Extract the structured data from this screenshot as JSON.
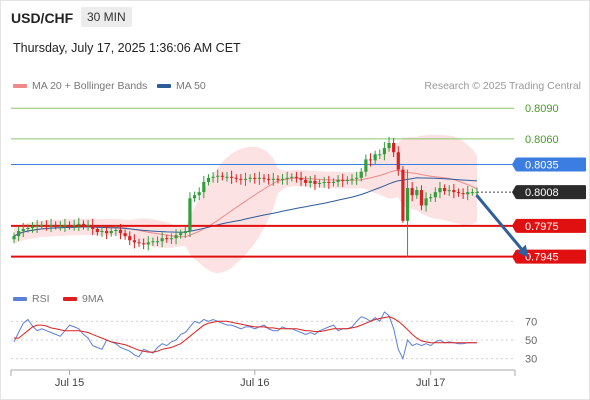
{
  "header": {
    "symbol": "USD/CHF",
    "timeframe": "30 MIN",
    "datetime": "Thursday, July 17, 2025 1:36:06 AM CET",
    "copyright": "Research © 2025 Trading Central"
  },
  "legend": {
    "ma20": {
      "label": "MA 20 + Bollinger Bands",
      "color": "#f08a8a"
    },
    "ma50": {
      "label": "MA 50",
      "color": "#2e5b9a"
    },
    "rsi": {
      "label": "RSI",
      "color": "#5b80d8"
    },
    "ma9": {
      "label": "9MA",
      "color": "#e02020"
    }
  },
  "chart_data": {
    "type": "candlestick",
    "ylim": [
      0.793,
      0.8098
    ],
    "levels": [
      {
        "value": 0.809,
        "label": "0.8090",
        "kind": "resistance",
        "color": "#8cc56a"
      },
      {
        "value": 0.806,
        "label": "0.8060",
        "kind": "resistance",
        "color": "#8cc56a"
      },
      {
        "value": 0.8035,
        "label": "0.8035",
        "kind": "pivot",
        "color": "#3b7de0"
      },
      {
        "value": 0.8008,
        "label": "0.8008",
        "kind": "last",
        "color": "#2b2b2b"
      },
      {
        "value": 0.7975,
        "label": "0.7975",
        "kind": "support",
        "color": "#e01010"
      },
      {
        "value": 0.7945,
        "label": "0.7945",
        "kind": "support",
        "color": "#e01010"
      }
    ],
    "x_ticks": [
      {
        "index": 12,
        "label": "Jul 15"
      },
      {
        "index": 52,
        "label": "Jul 16"
      },
      {
        "index": 90,
        "label": "Jul 17"
      }
    ],
    "closes": [
      0.7965,
      0.797,
      0.7972,
      0.7973,
      0.7974,
      0.7975,
      0.7976,
      0.7975,
      0.7976,
      0.7975,
      0.7975,
      0.7976,
      0.7975,
      0.7976,
      0.7977,
      0.7975,
      0.7976,
      0.7972,
      0.7969,
      0.797,
      0.7968,
      0.797,
      0.7971,
      0.7968,
      0.7965,
      0.7961,
      0.7959,
      0.7958,
      0.7957,
      0.7959,
      0.796,
      0.796,
      0.7963,
      0.7962,
      0.7963,
      0.7966,
      0.7968,
      0.797,
      0.8002,
      0.8005,
      0.8008,
      0.8018,
      0.8022,
      0.8023,
      0.8024,
      0.8023,
      0.8023,
      0.8022,
      0.8021,
      0.802,
      0.8021,
      0.8022,
      0.8021,
      0.8022,
      0.8021,
      0.802,
      0.8021,
      0.802,
      0.8021,
      0.8022,
      0.8023,
      0.8022,
      0.802,
      0.8017,
      0.8019,
      0.8016,
      0.8017,
      0.8018,
      0.8017,
      0.8018,
      0.802,
      0.8019,
      0.802,
      0.8021,
      0.8022,
      0.8028,
      0.804,
      0.8039,
      0.8045,
      0.8045,
      0.8051,
      0.8056,
      0.8047,
      0.803,
      0.798,
      0.8012,
      0.8005,
      0.801,
      0.7995,
      0.8002,
      0.8003,
      0.8008,
      0.8012,
      0.8009,
      0.801,
      0.8008,
      0.8007,
      0.8006,
      0.8008,
      0.8008,
      0.8008
    ],
    "projection": {
      "from_index": 100,
      "from_value": 0.8008,
      "to_index": 108,
      "to_value": 0.7945
    },
    "rsi": {
      "levels": [
        70,
        50,
        30
      ],
      "ylim": [
        20,
        80
      ],
      "values": [
        48,
        58,
        68,
        72,
        65,
        60,
        62,
        60,
        58,
        56,
        54,
        60,
        66,
        64,
        62,
        56,
        52,
        44,
        42,
        40,
        50,
        48,
        46,
        42,
        40,
        38,
        34,
        32,
        40,
        38,
        36,
        42,
        46,
        44,
        48,
        50,
        56,
        58,
        64,
        70,
        68,
        72,
        70,
        72,
        70,
        68,
        66,
        66,
        64,
        62,
        64,
        64,
        62,
        64,
        66,
        62,
        60,
        60,
        64,
        62,
        62,
        60,
        58,
        56,
        58,
        56,
        60,
        62,
        64,
        66,
        60,
        62,
        62,
        64,
        70,
        75,
        73,
        70,
        74,
        70,
        80,
        76,
        62,
        40,
        30,
        50,
        44,
        46,
        44,
        46,
        44,
        48,
        50,
        47,
        48,
        47,
        46,
        46,
        47,
        47,
        47
      ],
      "ma9": [
        52,
        52,
        56,
        60,
        64,
        66,
        66,
        65,
        63,
        62,
        61,
        60,
        60,
        60,
        60,
        59,
        58,
        56,
        54,
        52,
        50,
        48,
        47,
        46,
        45,
        43,
        41,
        39,
        38,
        37,
        37,
        38,
        40,
        41,
        42,
        44,
        46,
        50,
        54,
        58,
        62,
        66,
        68,
        69,
        70,
        70,
        70,
        69,
        68,
        67,
        66,
        65,
        64,
        64,
        64,
        63,
        63,
        62,
        62,
        62,
        62,
        62,
        61,
        60,
        60,
        59,
        59,
        60,
        61,
        62,
        62,
        62,
        62,
        63,
        64,
        66,
        68,
        70,
        72,
        73,
        74,
        75,
        73,
        70,
        66,
        61,
        56,
        52,
        49,
        48,
        47,
        47,
        47,
        47,
        47,
        47,
        47,
        47,
        47,
        47,
        47
      ]
    },
    "rsi_ticks": [
      "70",
      "50",
      "30"
    ]
  }
}
